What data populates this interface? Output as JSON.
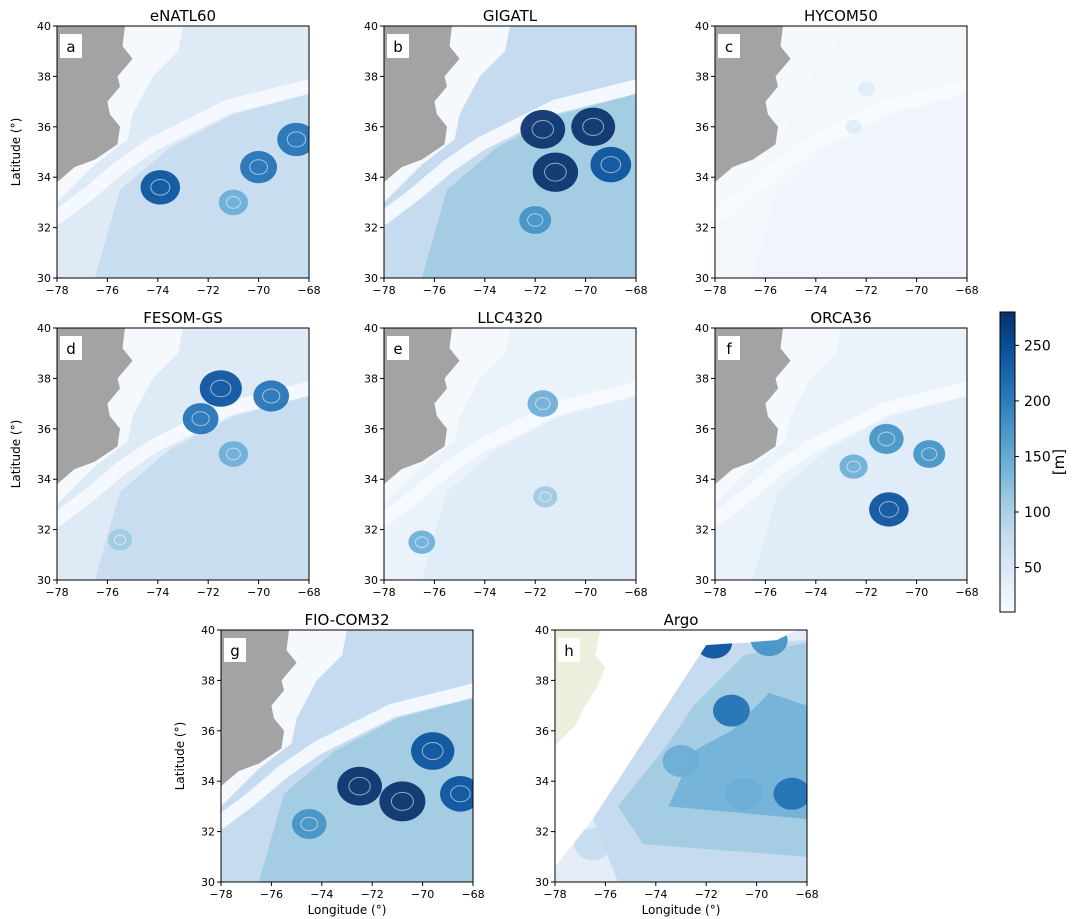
{
  "figure": {
    "colorbar": {
      "label": "[m]",
      "ticks": [
        50,
        100,
        150,
        200,
        250
      ],
      "range": [
        10,
        280
      ],
      "colormap": "Blues",
      "colors": [
        "#f7fbff",
        "#deebf7",
        "#c6dbef",
        "#9ecae1",
        "#6baed6",
        "#4292c6",
        "#2171b5",
        "#08519c",
        "#08306b"
      ]
    },
    "land_color_models": "#a3a3a3",
    "land_color_argo": "#eeeedc",
    "xlabel": "Longitude (°)",
    "ylabel": "Latitude (°)"
  },
  "chart_data": [
    {
      "panel": "a",
      "title": "eNATL60",
      "type": "heatmap",
      "xlim": [
        -78,
        -68
      ],
      "ylim": [
        30,
        40
      ],
      "x_ticks": [
        "−78",
        "−76",
        "−74",
        "−72",
        "−70",
        "−68"
      ],
      "y_ticks": [
        "30",
        "32",
        "34",
        "36",
        "38",
        "40"
      ],
      "ylabel": "Latitude (°)",
      "xlabel": "",
      "intensity": "high",
      "features": [
        {
          "lon": -70.0,
          "lat": 34.4,
          "value": 210
        },
        {
          "lon": -68.5,
          "lat": 35.5,
          "value": 220
        },
        {
          "lon": -73.9,
          "lat": 33.6,
          "value": 230
        },
        {
          "lon": -71.0,
          "lat": 33.0,
          "value": 150
        }
      ]
    },
    {
      "panel": "b",
      "title": "GIGATL",
      "type": "heatmap",
      "xlim": [
        -78,
        -68
      ],
      "ylim": [
        30,
        40
      ],
      "x_ticks": [
        "−78",
        "−76",
        "−74",
        "−72",
        "−70",
        "−68"
      ],
      "y_ticks": [
        "30",
        "32",
        "34",
        "36",
        "38",
        "40"
      ],
      "ylabel": "",
      "xlabel": "",
      "intensity": "very_high",
      "features": [
        {
          "lon": -71.7,
          "lat": 35.9,
          "value": 270
        },
        {
          "lon": -69.7,
          "lat": 36.0,
          "value": 265
        },
        {
          "lon": -71.2,
          "lat": 34.2,
          "value": 275
        },
        {
          "lon": -69.0,
          "lat": 34.5,
          "value": 240
        },
        {
          "lon": -72.0,
          "lat": 32.3,
          "value": 170
        }
      ]
    },
    {
      "panel": "c",
      "title": "HYCOM50",
      "type": "heatmap",
      "xlim": [
        -78,
        -68
      ],
      "ylim": [
        30,
        40
      ],
      "x_ticks": [
        "−78",
        "−76",
        "−74",
        "−72",
        "−70",
        "−68"
      ],
      "y_ticks": [
        "30",
        "32",
        "34",
        "36",
        "38",
        "40"
      ],
      "ylabel": "",
      "xlabel": "",
      "intensity": "low",
      "features": [
        {
          "lon": -72.0,
          "lat": 37.5,
          "value": 55
        },
        {
          "lon": -72.5,
          "lat": 36.0,
          "value": 45
        }
      ]
    },
    {
      "panel": "d",
      "title": "FESOM-GS",
      "type": "heatmap",
      "xlim": [
        -78,
        -68
      ],
      "ylim": [
        30,
        40
      ],
      "x_ticks": [
        "−78",
        "−76",
        "−74",
        "−72",
        "−70",
        "−68"
      ],
      "y_ticks": [
        "30",
        "32",
        "34",
        "36",
        "38",
        "40"
      ],
      "ylabel": "Latitude (°)",
      "xlabel": "",
      "intensity": "high",
      "features": [
        {
          "lon": -71.5,
          "lat": 37.6,
          "value": 250
        },
        {
          "lon": -69.5,
          "lat": 37.3,
          "value": 200
        },
        {
          "lon": -72.3,
          "lat": 36.4,
          "value": 200
        },
        {
          "lon": -71.0,
          "lat": 35.0,
          "value": 150
        },
        {
          "lon": -75.5,
          "lat": 31.6,
          "value": 110
        }
      ]
    },
    {
      "panel": "e",
      "title": "LLC4320",
      "type": "heatmap",
      "xlim": [
        -78,
        -68
      ],
      "ylim": [
        30,
        40
      ],
      "x_ticks": [
        "−78",
        "−76",
        "−74",
        "−72",
        "−70",
        "−68"
      ],
      "y_ticks": [
        "30",
        "32",
        "34",
        "36",
        "38",
        "40"
      ],
      "ylabel": "",
      "xlabel": "",
      "intensity": "medium",
      "features": [
        {
          "lon": -71.7,
          "lat": 37.0,
          "value": 160
        },
        {
          "lon": -71.6,
          "lat": 33.3,
          "value": 110
        },
        {
          "lon": -76.5,
          "lat": 31.5,
          "value": 130
        }
      ]
    },
    {
      "panel": "f",
      "title": "ORCA36",
      "type": "heatmap",
      "xlim": [
        -78,
        -68
      ],
      "ylim": [
        30,
        40
      ],
      "x_ticks": [
        "−78",
        "−76",
        "−74",
        "−72",
        "−70",
        "−68"
      ],
      "y_ticks": [
        "30",
        "32",
        "34",
        "36",
        "38",
        "40"
      ],
      "ylabel": "",
      "xlabel": "",
      "intensity": "medium",
      "features": [
        {
          "lon": -71.1,
          "lat": 32.8,
          "value": 230
        },
        {
          "lon": -71.2,
          "lat": 35.6,
          "value": 190
        },
        {
          "lon": -69.5,
          "lat": 35.0,
          "value": 170
        },
        {
          "lon": -72.5,
          "lat": 34.5,
          "value": 140
        }
      ]
    },
    {
      "panel": "g",
      "title": "FIO-COM32",
      "type": "heatmap",
      "xlim": [
        -78,
        -68
      ],
      "ylim": [
        30,
        40
      ],
      "x_ticks": [
        "−78",
        "−76",
        "−74",
        "−72",
        "−70",
        "−68"
      ],
      "y_ticks": [
        "30",
        "32",
        "34",
        "36",
        "38",
        "40"
      ],
      "ylabel": "Latitude (°)",
      "xlabel": "Longitude (°)",
      "intensity": "very_high",
      "features": [
        {
          "lon": -72.5,
          "lat": 33.8,
          "value": 270
        },
        {
          "lon": -70.8,
          "lat": 33.2,
          "value": 280
        },
        {
          "lon": -69.6,
          "lat": 35.2,
          "value": 260
        },
        {
          "lon": -68.5,
          "lat": 33.5,
          "value": 240
        },
        {
          "lon": -74.5,
          "lat": 32.3,
          "value": 190
        }
      ]
    },
    {
      "panel": "h",
      "title": "Argo",
      "type": "contourf",
      "xlim": [
        -78,
        -68
      ],
      "ylim": [
        30,
        40
      ],
      "x_ticks": [
        "−78",
        "−76",
        "−74",
        "−72",
        "−70",
        "−68"
      ],
      "y_ticks": [
        "30",
        "32",
        "34",
        "36",
        "38",
        "40"
      ],
      "ylabel": "",
      "xlabel": "Longitude (°)",
      "intensity": "medium",
      "features": [
        {
          "lon": -71.7,
          "lat": 39.5,
          "value": 230
        },
        {
          "lon": -69.5,
          "lat": 39.6,
          "value": 180
        },
        {
          "lon": -71.0,
          "lat": 36.8,
          "value": 200
        },
        {
          "lon": -68.6,
          "lat": 33.5,
          "value": 220
        },
        {
          "lon": -70.5,
          "lat": 33.5,
          "value": 160
        },
        {
          "lon": -73.0,
          "lat": 34.8,
          "value": 150
        },
        {
          "lon": -76.5,
          "lat": 31.5,
          "value": 90
        }
      ]
    }
  ]
}
